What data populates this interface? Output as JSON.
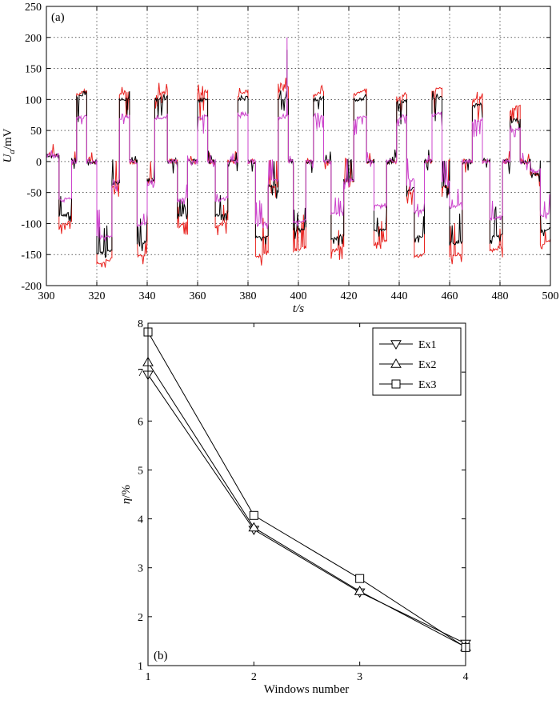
{
  "chart_data": [
    {
      "panel": "(a)",
      "type": "line",
      "xlabel": "t/s",
      "ylabel_main": "U",
      "ylabel_sub": "a",
      "ylabel_unit": "/mV",
      "xlim": [
        300,
        500
      ],
      "ylim": [
        -200,
        250
      ],
      "xticks": [
        300,
        320,
        340,
        360,
        380,
        400,
        420,
        440,
        460,
        480,
        500
      ],
      "yticks": [
        -200,
        -150,
        -100,
        -50,
        0,
        50,
        100,
        150,
        200,
        250
      ],
      "grid": true,
      "colors": {
        "s1": "#e8231f",
        "s2": "#000000",
        "s3": "#cc44cc"
      },
      "spike": {
        "x": 395.5,
        "y": 200
      },
      "segments": [
        [
          300,
          305,
          10,
          10,
          10
        ],
        [
          305,
          310,
          -100,
          -85,
          -60
        ],
        [
          310,
          312,
          0,
          0,
          0
        ],
        [
          312,
          316,
          110,
          105,
          70
        ],
        [
          316,
          320,
          0,
          0,
          0
        ],
        [
          320,
          326,
          -160,
          -145,
          -120
        ],
        [
          326,
          329,
          -40,
          -35,
          -30
        ],
        [
          329,
          333,
          110,
          100,
          70
        ],
        [
          333,
          336,
          0,
          0,
          0
        ],
        [
          336,
          340,
          -150,
          -130,
          -100
        ],
        [
          340,
          343,
          -30,
          -30,
          -30
        ],
        [
          343,
          348,
          108,
          100,
          70
        ],
        [
          348,
          352,
          0,
          0,
          0
        ],
        [
          352,
          356,
          -100,
          -85,
          -60
        ],
        [
          356,
          360,
          0,
          0,
          0
        ],
        [
          360,
          364,
          110,
          98,
          70
        ],
        [
          364,
          367,
          0,
          0,
          0
        ],
        [
          367,
          372,
          -100,
          -85,
          -60
        ],
        [
          372,
          376,
          0,
          0,
          0
        ],
        [
          376,
          380,
          110,
          100,
          72
        ],
        [
          380,
          383,
          0,
          0,
          0
        ],
        [
          383,
          388,
          -150,
          -120,
          -100
        ],
        [
          388,
          392,
          -40,
          -40,
          -30
        ],
        [
          392,
          396,
          115,
          100,
          70
        ],
        [
          396,
          398,
          0,
          0,
          0
        ],
        [
          398,
          403,
          -140,
          -110,
          -95
        ],
        [
          403,
          406,
          0,
          0,
          0
        ],
        [
          406,
          410,
          110,
          100,
          70
        ],
        [
          410,
          413,
          0,
          0,
          0
        ],
        [
          413,
          418,
          -140,
          -120,
          -80
        ],
        [
          418,
          422,
          -30,
          -30,
          -30
        ],
        [
          422,
          427,
          110,
          100,
          70
        ],
        [
          427,
          430,
          0,
          0,
          0
        ],
        [
          430,
          435,
          -130,
          -110,
          -70
        ],
        [
          435,
          439,
          0,
          0,
          0
        ],
        [
          439,
          443,
          105,
          95,
          70
        ],
        [
          443,
          446,
          -50,
          -45,
          -30
        ],
        [
          446,
          450,
          -150,
          -120,
          -80
        ],
        [
          450,
          453,
          0,
          0,
          0
        ],
        [
          453,
          457,
          115,
          100,
          75
        ],
        [
          457,
          460,
          -40,
          -40,
          -30
        ],
        [
          460,
          465,
          -150,
          -130,
          -70
        ],
        [
          465,
          469,
          0,
          0,
          0
        ],
        [
          469,
          473,
          100,
          90,
          65
        ],
        [
          473,
          476,
          0,
          0,
          0
        ],
        [
          476,
          481,
          -140,
          -120,
          -90
        ],
        [
          481,
          484,
          0,
          0,
          0
        ],
        [
          484,
          488,
          85,
          65,
          50
        ],
        [
          488,
          492,
          0,
          0,
          0
        ],
        [
          492,
          496,
          -20,
          -20,
          -15
        ],
        [
          496,
          500,
          -130,
          -110,
          -85
        ]
      ]
    },
    {
      "panel": "(b)",
      "type": "line",
      "xlabel": "Windows number",
      "ylabel_main": "η",
      "ylabel_unit": "/%",
      "xlim": [
        1,
        4
      ],
      "ylim": [
        1,
        8
      ],
      "xticks": [
        1,
        2,
        3,
        4
      ],
      "yticks": [
        1,
        2,
        3,
        4,
        5,
        6,
        7,
        8
      ],
      "grid": false,
      "legend_position": "top-right",
      "categories": [
        1,
        2,
        3,
        4
      ],
      "series": [
        {
          "name": "Ex1",
          "marker": "triangle-down",
          "values": [
            6.95,
            3.78,
            2.5,
            1.45
          ]
        },
        {
          "name": "Ex2",
          "marker": "triangle-up",
          "values": [
            7.2,
            3.82,
            2.52,
            1.38
          ]
        },
        {
          "name": "Ex3",
          "marker": "square",
          "values": [
            7.82,
            4.07,
            2.78,
            1.37
          ]
        }
      ]
    }
  ]
}
